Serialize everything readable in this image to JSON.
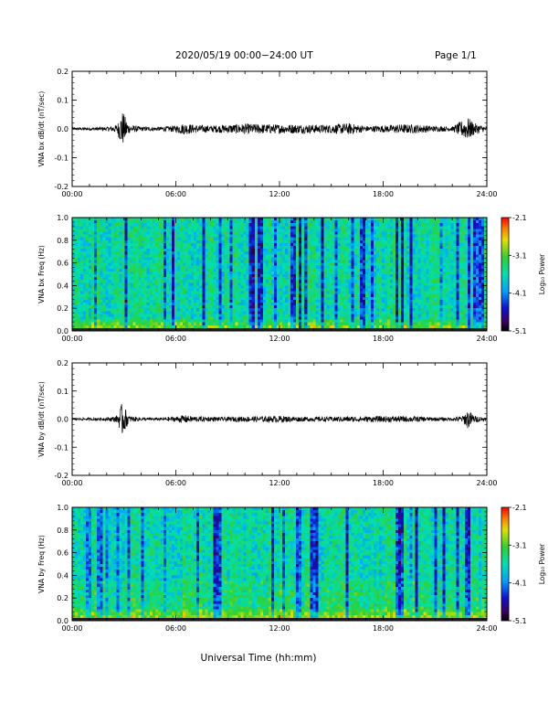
{
  "header": {
    "date_range": "2020/05/19  00:00−24:00 UT",
    "page": "Page 1/1"
  },
  "xlabel": "Universal Time (hh:mm)",
  "colors": {
    "line": "#000000",
    "background": "#ffffff"
  },
  "chart_data": [
    {
      "type": "line",
      "ylabel": "VNA bx dB/dt (nT/sec)",
      "ylim": [
        -0.2,
        0.2
      ],
      "yticks": [
        "0.2",
        "0.1",
        "0.0",
        "-0.1",
        "-0.2"
      ],
      "xticks": [
        "00:00",
        "06:00",
        "12:00",
        "18:00",
        "24:00"
      ],
      "xlim_hours": [
        0,
        24
      ],
      "envelope": {
        "x_hours": [
          0,
          1,
          2,
          2.6,
          2.9,
          3.3,
          4,
          5,
          6,
          6.5,
          7,
          8,
          9,
          10,
          11,
          12,
          13,
          14,
          15,
          16,
          17,
          18,
          19,
          20,
          21,
          22,
          22.6,
          22.9,
          23.3,
          24
        ],
        "half_amplitude": [
          0.005,
          0.005,
          0.007,
          0.015,
          0.065,
          0.015,
          0.008,
          0.007,
          0.012,
          0.02,
          0.015,
          0.012,
          0.015,
          0.018,
          0.017,
          0.016,
          0.016,
          0.015,
          0.015,
          0.02,
          0.01,
          0.012,
          0.016,
          0.015,
          0.01,
          0.008,
          0.03,
          0.04,
          0.02,
          0.007
        ]
      }
    },
    {
      "type": "heatmap",
      "ylabel": "VNA bx Freq (Hz)",
      "ylim": [
        0,
        1.0
      ],
      "yticks": [
        "1.0",
        "0.8",
        "0.6",
        "0.4",
        "0.2",
        "0.0"
      ],
      "xticks": [
        "00:00",
        "06:00",
        "12:00",
        "18:00",
        "24:00"
      ],
      "xlim_hours": [
        0,
        24
      ],
      "colorbar": {
        "label": "Log₁₀ Power",
        "ticks": [
          "-2.1",
          "-3.1",
          "-4.1",
          "-5.1"
        ],
        "range": [
          -5.1,
          -2.1
        ]
      }
    },
    {
      "type": "line",
      "ylabel": "VNA by dB/dt (nT/sec)",
      "ylim": [
        -0.2,
        0.2
      ],
      "yticks": [
        "0.2",
        "0.1",
        "0.0",
        "-0.1",
        "-0.2"
      ],
      "xticks": [
        "00:00",
        "06:00",
        "12:00",
        "18:00",
        "24:00"
      ],
      "xlim_hours": [
        0,
        24
      ],
      "envelope": {
        "x_hours": [
          0,
          1,
          2,
          2.6,
          2.9,
          3.3,
          4,
          5,
          6,
          6.5,
          7,
          8,
          9,
          10,
          11,
          12,
          13,
          14,
          15,
          16,
          17,
          18,
          19,
          20,
          21,
          22,
          22.6,
          22.9,
          23.3,
          24
        ],
        "half_amplitude": [
          0.004,
          0.005,
          0.006,
          0.012,
          0.06,
          0.012,
          0.006,
          0.005,
          0.01,
          0.015,
          0.01,
          0.008,
          0.008,
          0.01,
          0.01,
          0.012,
          0.009,
          0.008,
          0.009,
          0.01,
          0.01,
          0.011,
          0.011,
          0.01,
          0.007,
          0.006,
          0.012,
          0.035,
          0.012,
          0.006
        ]
      }
    },
    {
      "type": "heatmap",
      "ylabel": "VNA by Freq (Hz)",
      "ylim": [
        0,
        1.0
      ],
      "yticks": [
        "1.0",
        "0.8",
        "0.6",
        "0.4",
        "0.2",
        "0.0"
      ],
      "xticks": [
        "00:00",
        "06:00",
        "12:00",
        "18:00",
        "24:00"
      ],
      "xlim_hours": [
        0,
        24
      ],
      "colorbar": {
        "label": "Log₁₀ Power",
        "ticks": [
          "-2.1",
          "-3.1",
          "-4.1",
          "-5.1"
        ],
        "range": [
          -5.1,
          -2.1
        ]
      }
    }
  ]
}
